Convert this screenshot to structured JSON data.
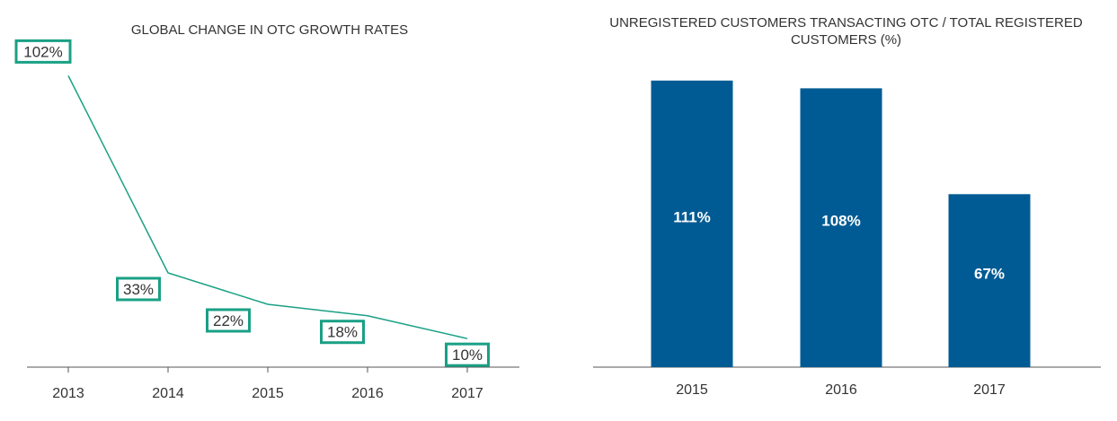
{
  "colors": {
    "line": "#1aa085",
    "bar": "#005b94",
    "axis": "#555555"
  },
  "chart_data": [
    {
      "type": "line",
      "title": "GLOBAL CHANGE IN OTC GROWTH RATES",
      "x": [
        "2013",
        "2014",
        "2015",
        "2016",
        "2017"
      ],
      "values": [
        102,
        33,
        22,
        18,
        10
      ],
      "data_labels": [
        "102%",
        "33%",
        "22%",
        "18%",
        "10%"
      ],
      "ylim": [
        0,
        104
      ],
      "grid": false,
      "legend": "none"
    },
    {
      "type": "bar",
      "title": "UNREGISTERED CUSTOMERS TRANSACTING OTC / TOTAL REGISTERED CUSTOMERS (%)",
      "categories": [
        "2015",
        "2016",
        "2017"
      ],
      "values": [
        111,
        108,
        67
      ],
      "data_labels": [
        "111%",
        "108%",
        "67%"
      ],
      "ylim": [
        0,
        113
      ],
      "grid": false,
      "legend": "none"
    }
  ]
}
